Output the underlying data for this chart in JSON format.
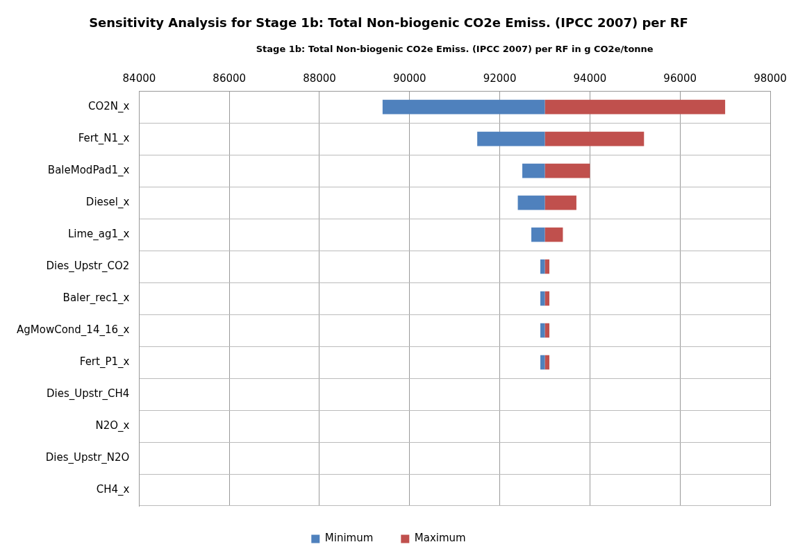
{
  "chart_data": {
    "type": "bar",
    "orientation": "horizontal",
    "title": "Sensitivity Analysis for Stage 1b: Total Non-biogenic CO2e Emiss. (IPCC 2007) per RF",
    "xlabel": "Stage 1b: Total Non-biogenic CO2e Emiss. (IPCC 2007) per RF in g CO2e/tonne",
    "categories": [
      "CO2N_x",
      "Fert_N1_x",
      "BaleModPad1_x",
      "Diesel_x",
      "Lime_ag1_x",
      "Dies_Upstr_CO2",
      "Baler_rec1_x",
      "AgMowCond_14_16_x",
      "Fert_P1_x",
      "Dies_Upstr_CH4",
      "N2O_x",
      "Dies_Upstr_N2O",
      "CH4_x"
    ],
    "series": [
      {
        "name": "Minimum",
        "color": "#4f81bd",
        "base": [
          93000,
          93000,
          93000,
          93000,
          93000,
          93000,
          93000,
          93000,
          93000,
          null,
          null,
          null,
          null
        ],
        "values": [
          -3600,
          -1500,
          -500,
          -600,
          -300,
          -100,
          -100,
          -100,
          -100,
          null,
          null,
          null,
          null
        ]
      },
      {
        "name": "Maximum",
        "color": "#c0504d",
        "base": [
          93000,
          93000,
          93000,
          93000,
          93000,
          93000,
          93000,
          93000,
          93000,
          null,
          null,
          null,
          null
        ],
        "values": [
          4000,
          2200,
          1000,
          700,
          400,
          100,
          100,
          100,
          100,
          null,
          null,
          null,
          null
        ]
      }
    ],
    "xlim": [
      84000,
      98000
    ],
    "xticks": [
      84000,
      86000,
      88000,
      90000,
      92000,
      94000,
      96000,
      98000
    ],
    "grid": true,
    "legend": "bottom"
  }
}
